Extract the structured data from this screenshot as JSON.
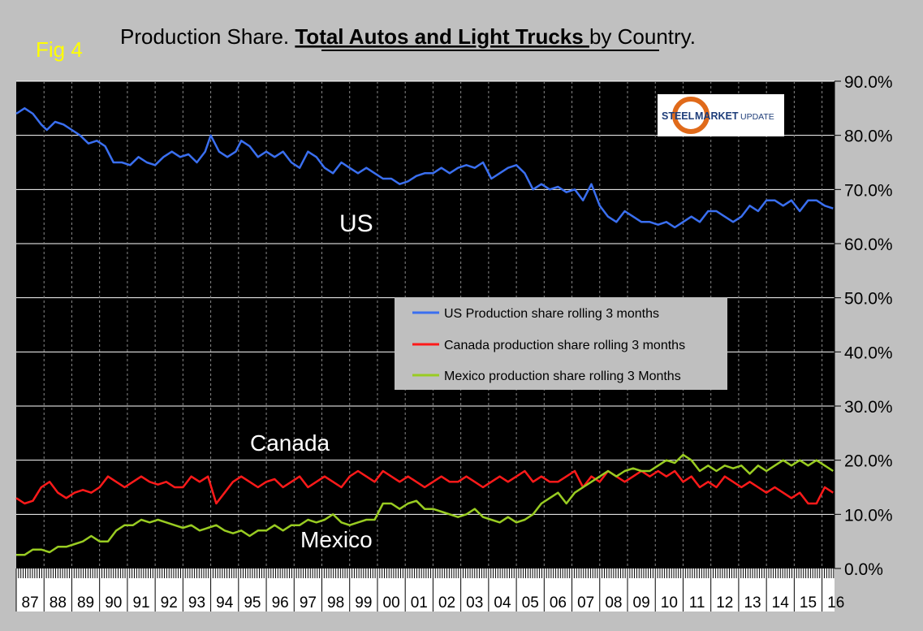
{
  "page": {
    "fig_label": "Fig 4",
    "title_pre": "Production Share. ",
    "title_bold": "Total Autos and Light Trucks ",
    "title_post": "by Country."
  },
  "logo": {
    "word1": "STEEL",
    "word2": "MARKET",
    "word3": "UPDATE"
  },
  "colors": {
    "background": "#c0c0c0",
    "plot_bg": "#000000",
    "grid": "#ffffff",
    "us": "#3a6ff0",
    "canada": "#ff1a1a",
    "mexico": "#99cc22",
    "fig_label": "#ffff00",
    "legend_bg": "#bfbfbf"
  },
  "chart_data": {
    "type": "line",
    "title": "Production Share. Total Autos and Light Trucks by Country.",
    "xlabel": "",
    "ylabel": "",
    "x_start_year": 1987,
    "x_end_year": 2016.45,
    "ylim": [
      0,
      90
    ],
    "yticks": [
      "0.0%",
      "10.0%",
      "20.0%",
      "30.0%",
      "40.0%",
      "50.0%",
      "60.0%",
      "70.0%",
      "80.0%",
      "90.0%"
    ],
    "x_tick_labels": [
      "87",
      "88",
      "89",
      "90",
      "91",
      "92",
      "93",
      "94",
      "95",
      "96",
      "97",
      "98",
      "99",
      "00",
      "01",
      "02",
      "03",
      "04",
      "05",
      "06",
      "07",
      "08",
      "09",
      "10",
      "11",
      "12",
      "13",
      "14",
      "15",
      "16"
    ],
    "grid": true,
    "legend_position": "center-right",
    "annotations": [
      {
        "text": "US",
        "series": "us"
      },
      {
        "text": "Canada",
        "series": "canada"
      },
      {
        "text": "Mexico",
        "series": "mexico"
      }
    ],
    "series": [
      {
        "name": "US Production share rolling 3 months",
        "key": "us",
        "x": [
          1987.0,
          1987.3,
          1987.6,
          1987.9,
          1988.1,
          1988.4,
          1988.7,
          1989.0,
          1989.3,
          1989.6,
          1989.9,
          1990.2,
          1990.5,
          1990.8,
          1991.1,
          1991.4,
          1991.7,
          1992.0,
          1992.3,
          1992.6,
          1992.9,
          1993.2,
          1993.5,
          1993.8,
          1994.0,
          1994.3,
          1994.6,
          1994.9,
          1995.1,
          1995.4,
          1995.7,
          1996.0,
          1996.3,
          1996.6,
          1996.9,
          1997.2,
          1997.5,
          1997.8,
          1998.1,
          1998.4,
          1998.7,
          1999.0,
          1999.3,
          1999.6,
          1999.9,
          2000.2,
          2000.5,
          2000.8,
          2001.1,
          2001.4,
          2001.7,
          2002.0,
          2002.3,
          2002.6,
          2002.9,
          2003.2,
          2003.5,
          2003.8,
          2004.1,
          2004.4,
          2004.7,
          2005.0,
          2005.3,
          2005.6,
          2005.9,
          2006.2,
          2006.5,
          2006.8,
          2007.1,
          2007.4,
          2007.7,
          2008.0,
          2008.3,
          2008.6,
          2008.9,
          2009.2,
          2009.5,
          2009.8,
          2010.1,
          2010.4,
          2010.7,
          2011.0,
          2011.3,
          2011.6,
          2011.9,
          2012.2,
          2012.5,
          2012.8,
          2013.1,
          2013.4,
          2013.7,
          2014.0,
          2014.3,
          2014.6,
          2014.9,
          2015.2,
          2015.5,
          2015.8,
          2016.1,
          2016.4
        ],
        "values": [
          84,
          85,
          84,
          82,
          81,
          82.5,
          82,
          81,
          80,
          78.5,
          79,
          78,
          75,
          75,
          74.5,
          76,
          75,
          74.5,
          76,
          77,
          76,
          76.5,
          75,
          77,
          80,
          77,
          76,
          77,
          79,
          78,
          76,
          77,
          76,
          77,
          75,
          74,
          77,
          76,
          74,
          73,
          75,
          74,
          73,
          74,
          73,
          72,
          72,
          71,
          71.5,
          72.5,
          73,
          73,
          74,
          73,
          74,
          74.5,
          74,
          75,
          72,
          73,
          74,
          74.5,
          73,
          70,
          71,
          70,
          70.5,
          69.5,
          70,
          68,
          71,
          67,
          65,
          64,
          66,
          65,
          64,
          64,
          63.5,
          64,
          63,
          64,
          65,
          64,
          66,
          66,
          65,
          64,
          65,
          67,
          66,
          68,
          68,
          67,
          68,
          66,
          68,
          68,
          67,
          66.5
        ]
      },
      {
        "name": "Canada production share rolling 3 months",
        "key": "canada",
        "x": [
          1987.0,
          1987.3,
          1987.6,
          1987.9,
          1988.2,
          1988.5,
          1988.8,
          1989.1,
          1989.4,
          1989.7,
          1990.0,
          1990.3,
          1990.6,
          1990.9,
          1991.2,
          1991.5,
          1991.8,
          1992.1,
          1992.4,
          1992.7,
          1993.0,
          1993.3,
          1993.6,
          1993.9,
          1994.2,
          1994.5,
          1994.8,
          1995.1,
          1995.4,
          1995.7,
          1996.0,
          1996.3,
          1996.6,
          1996.9,
          1997.2,
          1997.5,
          1997.8,
          1998.1,
          1998.4,
          1998.7,
          1999.0,
          1999.3,
          1999.6,
          1999.9,
          2000.2,
          2000.5,
          2000.8,
          2001.1,
          2001.4,
          2001.7,
          2002.0,
          2002.3,
          2002.6,
          2002.9,
          2003.2,
          2003.5,
          2003.8,
          2004.1,
          2004.4,
          2004.7,
          2005.0,
          2005.3,
          2005.6,
          2005.9,
          2006.2,
          2006.5,
          2006.8,
          2007.1,
          2007.4,
          2007.7,
          2008.0,
          2008.3,
          2008.6,
          2008.9,
          2009.2,
          2009.5,
          2009.8,
          2010.1,
          2010.4,
          2010.7,
          2011.0,
          2011.3,
          2011.6,
          2011.9,
          2012.2,
          2012.5,
          2012.8,
          2013.1,
          2013.4,
          2013.7,
          2014.0,
          2014.3,
          2014.6,
          2014.9,
          2015.2,
          2015.5,
          2015.8,
          2016.1,
          2016.4
        ],
        "values": [
          13,
          12,
          12.5,
          15,
          16,
          14,
          13,
          14,
          14.5,
          14,
          15,
          17,
          16,
          15,
          16,
          17,
          16,
          15.5,
          16,
          15,
          15,
          17,
          16,
          17,
          12,
          14,
          16,
          17,
          16,
          15,
          16,
          16.5,
          15,
          16,
          17,
          15,
          16,
          17,
          16,
          15,
          17,
          18,
          17,
          16,
          18,
          17,
          16,
          17,
          16,
          15,
          16,
          17,
          16,
          16,
          17,
          16,
          15,
          16,
          17,
          16,
          17,
          18,
          16,
          17,
          16,
          16,
          17,
          18,
          15,
          17,
          16,
          18,
          17,
          16,
          17,
          18,
          17,
          18,
          17,
          18,
          16,
          17,
          15,
          16,
          15,
          17,
          16,
          15,
          16,
          15,
          14,
          15,
          14,
          13,
          14,
          12,
          12,
          15,
          14
        ]
      },
      {
        "name": "Mexico production share rolling 3 Months",
        "key": "mexico",
        "x": [
          1987.0,
          1987.3,
          1987.6,
          1987.9,
          1988.2,
          1988.5,
          1988.8,
          1989.1,
          1989.4,
          1989.7,
          1990.0,
          1990.3,
          1990.6,
          1990.9,
          1991.2,
          1991.5,
          1991.8,
          1992.1,
          1992.4,
          1992.7,
          1993.0,
          1993.3,
          1993.6,
          1993.9,
          1994.2,
          1994.5,
          1994.8,
          1995.1,
          1995.4,
          1995.7,
          1996.0,
          1996.3,
          1996.6,
          1996.9,
          1997.2,
          1997.5,
          1997.8,
          1998.1,
          1998.4,
          1998.7,
          1999.0,
          1999.3,
          1999.6,
          1999.9,
          2000.2,
          2000.5,
          2000.8,
          2001.1,
          2001.4,
          2001.7,
          2002.0,
          2002.3,
          2002.6,
          2002.9,
          2003.2,
          2003.5,
          2003.8,
          2004.1,
          2004.4,
          2004.7,
          2005.0,
          2005.3,
          2005.6,
          2005.9,
          2006.2,
          2006.5,
          2006.8,
          2007.1,
          2007.4,
          2007.7,
          2008.0,
          2008.3,
          2008.6,
          2008.9,
          2009.2,
          2009.5,
          2009.8,
          2010.1,
          2010.4,
          2010.7,
          2011.0,
          2011.3,
          2011.6,
          2011.9,
          2012.2,
          2012.5,
          2012.8,
          2013.1,
          2013.4,
          2013.7,
          2014.0,
          2014.3,
          2014.6,
          2014.9,
          2015.2,
          2015.5,
          2015.8,
          2016.1,
          2016.4
        ],
        "values": [
          2.5,
          2.5,
          3.5,
          3.5,
          3,
          4,
          4,
          4.5,
          5,
          6,
          5,
          5,
          7,
          8,
          8,
          9,
          8.5,
          9,
          8.5,
          8,
          7.5,
          8,
          7,
          7.5,
          8,
          7,
          6.5,
          7,
          6,
          7,
          7,
          8,
          7,
          8,
          8,
          9,
          8.5,
          9,
          10,
          8.5,
          8,
          8.5,
          9,
          9,
          12,
          12,
          11,
          12,
          12.5,
          11,
          11,
          10.5,
          10,
          9.5,
          10,
          11,
          9.5,
          9,
          8.5,
          9.5,
          8.5,
          9,
          10,
          12,
          13,
          14,
          12,
          14,
          15,
          16,
          17,
          18,
          17,
          18,
          18.5,
          18,
          18,
          19,
          20,
          19.5,
          21,
          20,
          18,
          19,
          18,
          19,
          18.5,
          19,
          17.5,
          19,
          18,
          19,
          20,
          19,
          20,
          19,
          20,
          19,
          18
        ]
      }
    ]
  }
}
